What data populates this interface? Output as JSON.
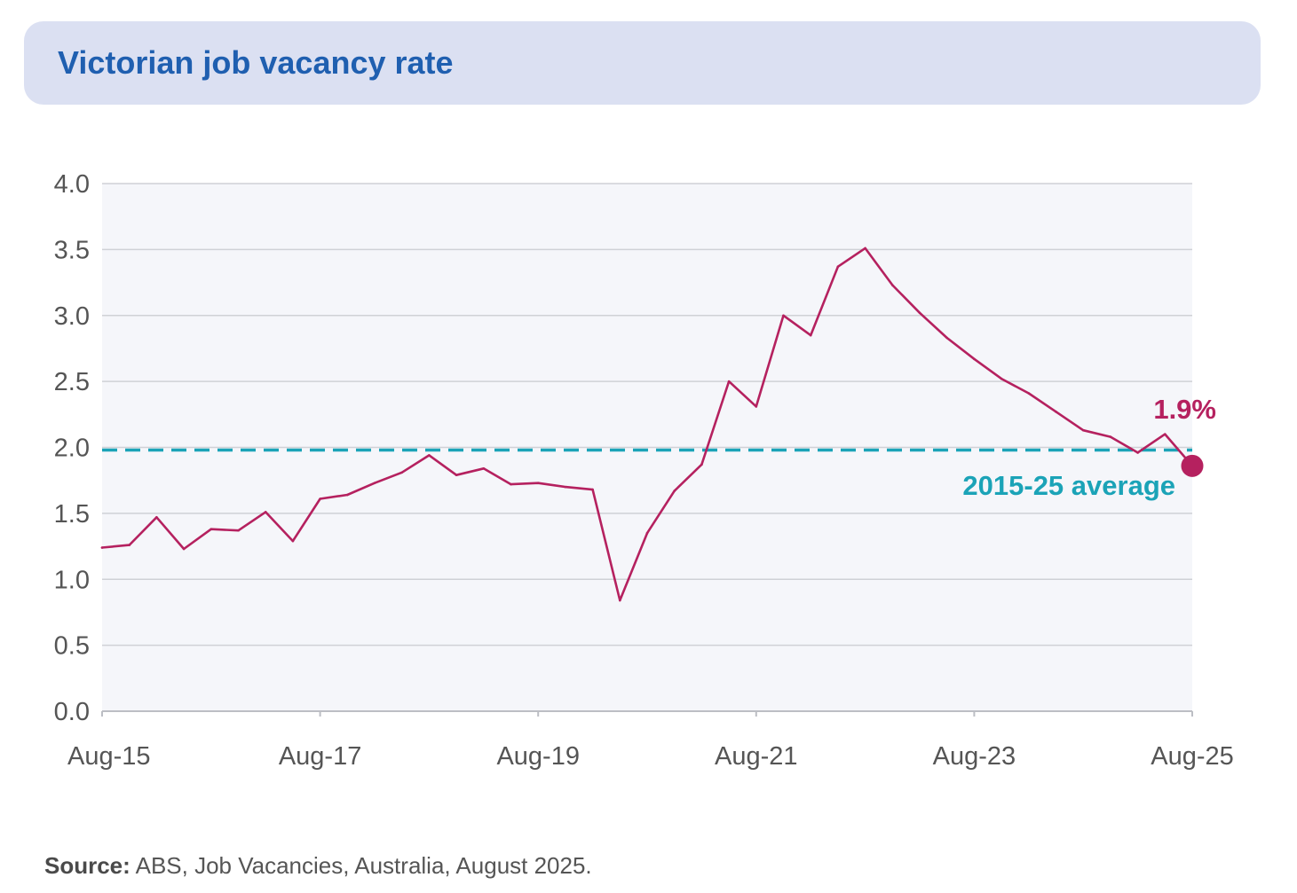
{
  "title": "Victorian job vacancy rate",
  "source": {
    "label": "Source:",
    "text": " ABS, Job Vacancies, Australia, August 2025."
  },
  "chart_data": {
    "type": "line",
    "title": "Victorian job vacancy rate",
    "xlabel": "",
    "ylabel": "",
    "ylim": [
      0,
      4
    ],
    "yticks": [
      "0.0",
      "0.5",
      "1.0",
      "1.5",
      "2.0",
      "2.5",
      "3.0",
      "3.5",
      "4.0"
    ],
    "xticks": [
      "Aug-15",
      "Aug-17",
      "Aug-19",
      "Aug-21",
      "Aug-23",
      "Aug-25"
    ],
    "grid": true,
    "series": [
      {
        "color": "#b5215f",
        "x": [
          "Aug-15",
          "Nov-15",
          "Feb-16",
          "May-16",
          "Aug-16",
          "Nov-16",
          "Feb-17",
          "May-17",
          "Aug-17",
          "Nov-17",
          "Feb-18",
          "May-18",
          "Aug-18",
          "Nov-18",
          "Feb-19",
          "May-19",
          "Aug-19",
          "Nov-19",
          "Feb-20",
          "May-20",
          "Aug-20",
          "Nov-20",
          "Feb-21",
          "May-21",
          "Aug-21",
          "Nov-21",
          "Feb-22",
          "May-22",
          "Aug-22",
          "Nov-22",
          "Feb-23",
          "May-23",
          "Aug-23",
          "Nov-23",
          "Feb-24",
          "May-24",
          "Aug-24",
          "Nov-24",
          "Feb-25",
          "May-25",
          "Aug-25"
        ],
        "values": [
          1.24,
          1.26,
          1.47,
          1.23,
          1.38,
          1.37,
          1.51,
          1.29,
          1.61,
          1.64,
          1.73,
          1.81,
          1.94,
          1.79,
          1.84,
          1.72,
          1.73,
          1.7,
          1.68,
          0.84,
          1.35,
          1.67,
          1.87,
          2.5,
          2.31,
          3.0,
          2.85,
          3.37,
          3.51,
          3.23,
          3.02,
          2.83,
          2.67,
          2.52,
          2.41,
          2.27,
          2.13,
          2.08,
          1.96,
          2.1,
          1.86
        ]
      }
    ],
    "reference_line": {
      "label": "2015-25 average",
      "value": 1.98,
      "color": "#1ba3b7",
      "style": "dashed"
    },
    "annotations": [
      {
        "text": "1.9%",
        "color": "#b5215f"
      }
    ]
  }
}
